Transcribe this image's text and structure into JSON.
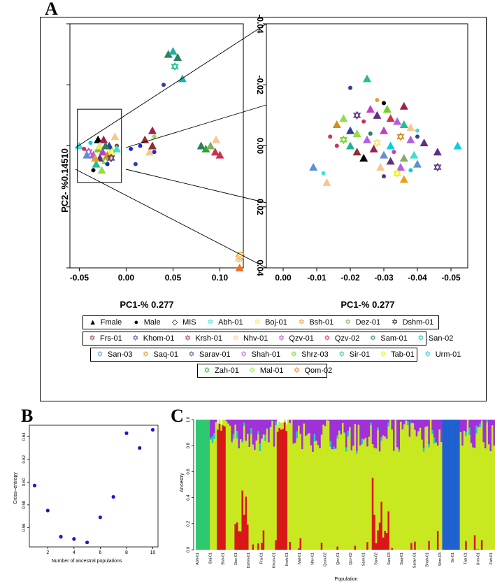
{
  "panel_labels": {
    "a": "A",
    "b": "B",
    "c": "C"
  },
  "colors": {
    "Abh-01": "#40e0d0",
    "Boj-01": "#f5e27a",
    "Bsh-01": "#e6a020",
    "Dez-01": "#7fb060",
    "Dshm-01": "#000000",
    "Frs-01": "#8b3030",
    "Khom-01": "#3040a0",
    "Krsh-01": "#a02050",
    "Nhv-01": "#f5c890",
    "Qzv-01": "#c040c0",
    "Qzv-02": "#d03050",
    "Sam-01": "#2a8060",
    "San-02": "#20b0a0",
    "San-03": "#6090d0",
    "Saq-01": "#d09020",
    "Sarav-01": "#603080",
    "Shah-01": "#b060e0",
    "Shrz-03": "#70d020",
    "Sir-01": "#20c090",
    "Tab-01": "#f0f000",
    "Urm-01": "#00d0e0",
    "Zah-01": "#30a030",
    "Mal-01": "#90e040",
    "Qom-02": "#f07020",
    "Male": "#1a2ad0"
  },
  "legend_rows": [
    [
      {
        "label": "Fmale",
        "sym": "▲",
        "color": "#000000"
      },
      {
        "label": "Male",
        "sym": "●",
        "color": "#000000"
      },
      {
        "label": "MIS",
        "sym": "◇",
        "color": "#000000"
      },
      {
        "label": "Abh-01",
        "sym": "✡",
        "color": "#40e0d0"
      },
      {
        "label": "Boj-01",
        "sym": "✡",
        "color": "#f5e27a"
      },
      {
        "label": "Bsh-01",
        "sym": "✡",
        "color": "#e6a020"
      },
      {
        "label": "Dez-01",
        "sym": "✡",
        "color": "#7fb060"
      },
      {
        "label": "Dshm-01",
        "sym": "✡",
        "color": "#000000"
      }
    ],
    [
      {
        "label": "Frs-01",
        "sym": "✡",
        "color": "#8b3030"
      },
      {
        "label": "Khom-01",
        "sym": "✡",
        "color": "#3040a0"
      },
      {
        "label": "Krsh-01",
        "sym": "✡",
        "color": "#a02050"
      },
      {
        "label": "Nhv-01",
        "sym": "✡",
        "color": "#f5c890"
      },
      {
        "label": "Qzv-01",
        "sym": "✡",
        "color": "#c040c0"
      },
      {
        "label": "Qzv-02",
        "sym": "✡",
        "color": "#d03050"
      },
      {
        "label": "Sam-01",
        "sym": "✡",
        "color": "#2a8060"
      },
      {
        "label": "San-02",
        "sym": "✡",
        "color": "#20b0a0"
      }
    ],
    [
      {
        "label": "San-03",
        "sym": "✡",
        "color": "#6090d0"
      },
      {
        "label": "Saq-01",
        "sym": "✡",
        "color": "#d09020"
      },
      {
        "label": "Sarav-01",
        "sym": "✡",
        "color": "#603080"
      },
      {
        "label": "Shah-01",
        "sym": "✡",
        "color": "#b060e0"
      },
      {
        "label": "Shrz-03",
        "sym": "✡",
        "color": "#70d020"
      },
      {
        "label": "Sir-01",
        "sym": "✡",
        "color": "#20c090"
      },
      {
        "label": "Tab-01",
        "sym": "✡",
        "color": "#f0f000"
      },
      {
        "label": "Urm-01",
        "sym": "✡",
        "color": "#00d0e0"
      }
    ],
    [
      {
        "label": "Zah-01",
        "sym": "✡",
        "color": "#30a030"
      },
      {
        "label": "Mal-01",
        "sym": "✡",
        "color": "#90e040"
      },
      {
        "label": "Qom-02",
        "sym": "✡",
        "color": "#f07020"
      }
    ]
  ],
  "chart_data": [
    {
      "type": "scatter",
      "panel": "A-left",
      "xlabel": "PC1-% 0.277",
      "ylabel": "PC2- %0.14510",
      "xticks": [
        "-0.05",
        "0.00",
        "0.05",
        "0.10"
      ],
      "xlim": [
        -0.06,
        0.125
      ],
      "ylim": [
        -0.04,
        0.04
      ],
      "yticks_unlabeled": [
        -0.04,
        -0.02,
        0.0,
        0.02,
        0.04
      ],
      "points": [
        {
          "x": 0.045,
          "y": -0.03,
          "g": "Sam-01",
          "m": "tri"
        },
        {
          "x": 0.05,
          "y": -0.031,
          "g": "San-02",
          "m": "tri"
        },
        {
          "x": 0.055,
          "y": -0.029,
          "g": "Sam-01",
          "m": "tri"
        },
        {
          "x": 0.052,
          "y": -0.026,
          "g": "Sir-01",
          "m": "star"
        },
        {
          "x": 0.06,
          "y": -0.022,
          "g": "San-02",
          "m": "tri"
        },
        {
          "x": 0.04,
          "y": -0.02,
          "g": "Khom-01",
          "m": "dot"
        },
        {
          "x": 0.028,
          "y": -0.005,
          "g": "Krsh-01",
          "m": "tri"
        },
        {
          "x": 0.03,
          "y": -0.003,
          "g": "Mal-01",
          "m": "dot"
        },
        {
          "x": 0.02,
          "y": -0.002,
          "g": "Frs-01",
          "m": "tri"
        },
        {
          "x": 0.015,
          "y": 0.0,
          "g": "Male",
          "m": "dot"
        },
        {
          "x": 0.005,
          "y": 0.001,
          "g": "Male",
          "m": "dot"
        },
        {
          "x": -0.01,
          "y": 0.0,
          "g": "Frs-01",
          "m": "dot"
        },
        {
          "x": 0.03,
          "y": 0.002,
          "g": "Male",
          "m": "dot"
        },
        {
          "x": 0.01,
          "y": 0.006,
          "g": "Khom-01",
          "m": "dot"
        },
        {
          "x": 0.025,
          "y": 0.002,
          "g": "Nhv-01",
          "m": "tri"
        },
        {
          "x": 0.028,
          "y": 0.0,
          "g": "Frs-01",
          "m": "tri"
        },
        {
          "x": 0.08,
          "y": 0.0,
          "g": "Sam-01",
          "m": "tri"
        },
        {
          "x": 0.085,
          "y": 0.001,
          "g": "Zah-01",
          "m": "tri"
        },
        {
          "x": 0.09,
          "y": 0.0,
          "g": "Dez-01",
          "m": "tri"
        },
        {
          "x": 0.095,
          "y": 0.002,
          "g": "Qzv-02",
          "m": "tri"
        },
        {
          "x": 0.1,
          "y": 0.003,
          "g": "Qzv-02",
          "m": "tri"
        },
        {
          "x": 0.096,
          "y": -0.002,
          "g": "Nhv-01",
          "m": "tri"
        },
        {
          "x": 0.122,
          "y": 0.036,
          "g": "Bsh-01",
          "m": "mis"
        },
        {
          "x": 0.12,
          "y": 0.037,
          "g": "Nhv-01",
          "m": "star"
        },
        {
          "x": 0.121,
          "y": 0.04,
          "g": "Qom-02",
          "m": "tri"
        },
        {
          "x": -0.05,
          "y": 0.0,
          "g": "Abh-01",
          "m": "tri"
        },
        {
          "x": -0.04,
          "y": 0.002,
          "g": "Qzv-01",
          "m": "star"
        },
        {
          "x": -0.035,
          "y": 0.003,
          "g": "Shah-01",
          "m": "tri"
        },
        {
          "x": -0.03,
          "y": 0.001,
          "g": "Shrz-03",
          "m": "tri"
        },
        {
          "x": -0.028,
          "y": 0.004,
          "g": "Sarav-01",
          "m": "tri"
        },
        {
          "x": -0.025,
          "y": 0.002,
          "g": "Qzv-01",
          "m": "tri"
        },
        {
          "x": -0.022,
          "y": 0.005,
          "g": "Shrz-03",
          "m": "star"
        },
        {
          "x": -0.02,
          "y": 0.003,
          "g": "Saq-01",
          "m": "tri"
        },
        {
          "x": -0.018,
          "y": 0.0,
          "g": "Khom-01",
          "m": "tri"
        },
        {
          "x": -0.032,
          "y": 0.006,
          "g": "Sir-01",
          "m": "tri"
        },
        {
          "x": -0.026,
          "y": 0.008,
          "g": "Mal-01",
          "m": "tri"
        },
        {
          "x": -0.015,
          "y": 0.002,
          "g": "Tab-01",
          "m": "star"
        },
        {
          "x": -0.038,
          "y": -0.001,
          "g": "Urm-01",
          "m": "dot"
        },
        {
          "x": -0.042,
          "y": 0.003,
          "g": "San-03",
          "m": "tri"
        },
        {
          "x": -0.03,
          "y": -0.002,
          "g": "Dshm-01",
          "m": "tri"
        },
        {
          "x": -0.024,
          "y": -0.002,
          "g": "Krsh-01",
          "m": "tri"
        },
        {
          "x": -0.02,
          "y": 0.006,
          "g": "Male",
          "m": "dot"
        },
        {
          "x": -0.035,
          "y": 0.008,
          "g": "Dshm-01",
          "m": "dot"
        },
        {
          "x": -0.028,
          "y": 0.0,
          "g": "Boj-01",
          "m": "tri"
        },
        {
          "x": -0.012,
          "y": -0.003,
          "g": "Nhv-01",
          "m": "tri"
        },
        {
          "x": -0.01,
          "y": 0.001,
          "g": "Abh-01",
          "m": "tri"
        },
        {
          "x": -0.045,
          "y": 0.001,
          "g": "Qzv-02",
          "m": "dot"
        },
        {
          "x": -0.033,
          "y": 0.004,
          "g": "Bsh-01",
          "m": "tri"
        },
        {
          "x": -0.022,
          "y": 0.0,
          "g": "Sam-01",
          "m": "tri"
        },
        {
          "x": -0.016,
          "y": 0.004,
          "g": "Sarav-01",
          "m": "star"
        }
      ]
    },
    {
      "type": "scatter",
      "panel": "A-right",
      "xlabel": "PC1-% 0.277",
      "xticks": [
        "0.00",
        "-0.01",
        "-0.02",
        "-0.03",
        "-0.04",
        "-0.05"
      ],
      "yticks": [
        "-0.04",
        "-0.02",
        "0.00",
        "0.02",
        "0.04"
      ],
      "xlim": [
        0.005,
        -0.055
      ],
      "ylim": [
        -0.04,
        0.04
      ],
      "points": [
        {
          "x": -0.025,
          "y": -0.022,
          "g": "Sir-01",
          "m": "tri"
        },
        {
          "x": -0.02,
          "y": -0.019,
          "g": "Khom-01",
          "m": "dot"
        },
        {
          "x": -0.036,
          "y": -0.013,
          "g": "Krsh-01",
          "m": "tri"
        },
        {
          "x": -0.028,
          "y": -0.015,
          "g": "Bsh-01",
          "m": "dot"
        },
        {
          "x": -0.03,
          "y": -0.014,
          "g": "Dshm-01",
          "m": "dot"
        },
        {
          "x": -0.031,
          "y": -0.012,
          "g": "Shrz-03",
          "m": "tri"
        },
        {
          "x": -0.026,
          "y": -0.012,
          "g": "Qzv-01",
          "m": "tri"
        },
        {
          "x": -0.018,
          "y": -0.009,
          "g": "Mal-01",
          "m": "tri"
        },
        {
          "x": -0.022,
          "y": -0.01,
          "g": "Sarav-01",
          "m": "star"
        },
        {
          "x": -0.024,
          "y": -0.008,
          "g": "Qzv-02",
          "m": "dot"
        },
        {
          "x": -0.028,
          "y": -0.01,
          "g": "Sarav-01",
          "m": "tri"
        },
        {
          "x": -0.032,
          "y": -0.009,
          "g": "Qzv-02",
          "m": "tri"
        },
        {
          "x": -0.034,
          "y": -0.008,
          "g": "Shah-01",
          "m": "tri"
        },
        {
          "x": -0.036,
          "y": -0.007,
          "g": "Sir-01",
          "m": "tri"
        },
        {
          "x": -0.038,
          "y": -0.006,
          "g": "Nhv-01",
          "m": "tri"
        },
        {
          "x": -0.04,
          "y": -0.005,
          "g": "Abh-01",
          "m": "dot"
        },
        {
          "x": -0.016,
          "y": -0.007,
          "g": "Saq-01",
          "m": "tri"
        },
        {
          "x": -0.02,
          "y": -0.005,
          "g": "Khom-01",
          "m": "tri"
        },
        {
          "x": -0.022,
          "y": -0.004,
          "g": "Mal-01",
          "m": "tri"
        },
        {
          "x": -0.026,
          "y": -0.004,
          "g": "Sam-01",
          "m": "dot"
        },
        {
          "x": -0.03,
          "y": -0.005,
          "g": "Qzv-01",
          "m": "tri"
        },
        {
          "x": -0.035,
          "y": -0.003,
          "g": "Saq-01",
          "m": "star"
        },
        {
          "x": -0.038,
          "y": -0.002,
          "g": "Shah-01",
          "m": "tri"
        },
        {
          "x": -0.042,
          "y": -0.001,
          "g": "Sarav-01",
          "m": "tri"
        },
        {
          "x": -0.014,
          "y": -0.003,
          "g": "Qzv-02",
          "m": "dot"
        },
        {
          "x": -0.018,
          "y": -0.002,
          "g": "Shrz-03",
          "m": "star"
        },
        {
          "x": -0.025,
          "y": -0.002,
          "g": "Shah-01",
          "m": "tri"
        },
        {
          "x": -0.028,
          "y": -0.001,
          "g": "Boj-01",
          "m": "star"
        },
        {
          "x": -0.032,
          "y": 0.0,
          "g": "Urm-01",
          "m": "tri"
        },
        {
          "x": -0.04,
          "y": -0.003,
          "g": "Khom-01",
          "m": "dot"
        },
        {
          "x": -0.022,
          "y": 0.002,
          "g": "Frs-01",
          "m": "tri"
        },
        {
          "x": -0.024,
          "y": 0.004,
          "g": "Dshm-01",
          "m": "tri"
        },
        {
          "x": -0.027,
          "y": 0.001,
          "g": "Krsh-01",
          "m": "tri"
        },
        {
          "x": -0.03,
          "y": 0.003,
          "g": "San-03",
          "m": "tri"
        },
        {
          "x": -0.033,
          "y": 0.002,
          "g": "Qzv-01",
          "m": "dot"
        },
        {
          "x": -0.036,
          "y": 0.004,
          "g": "Dez-01",
          "m": "tri"
        },
        {
          "x": -0.039,
          "y": 0.003,
          "g": "Abh-01",
          "m": "tri"
        },
        {
          "x": -0.046,
          "y": 0.002,
          "g": "Sarav-01",
          "m": "tri"
        },
        {
          "x": -0.052,
          "y": 0.0,
          "g": "Urm-01",
          "m": "tri"
        },
        {
          "x": -0.016,
          "y": 0.0,
          "g": "Qzv-02",
          "m": "dot"
        },
        {
          "x": -0.02,
          "y": 0.0,
          "g": "San-02",
          "m": "tri"
        },
        {
          "x": -0.029,
          "y": 0.007,
          "g": "Nhv-01",
          "m": "tri"
        },
        {
          "x": -0.032,
          "y": 0.005,
          "g": "Sarav-01",
          "m": "tri"
        },
        {
          "x": -0.035,
          "y": 0.007,
          "g": "Shah-01",
          "m": "tri"
        },
        {
          "x": -0.04,
          "y": 0.006,
          "g": "San-03",
          "m": "tri"
        },
        {
          "x": -0.046,
          "y": 0.007,
          "g": "Sarav-01",
          "m": "star"
        },
        {
          "x": -0.038,
          "y": 0.008,
          "g": "Urm-01",
          "m": "dot"
        },
        {
          "x": -0.036,
          "y": 0.011,
          "g": "Bsh-01",
          "m": "tri"
        },
        {
          "x": -0.03,
          "y": 0.01,
          "g": "Sarav-01",
          "m": "dot"
        },
        {
          "x": -0.034,
          "y": 0.009,
          "g": "Tab-01",
          "m": "star"
        },
        {
          "x": -0.009,
          "y": 0.007,
          "g": "San-03",
          "m": "tri"
        },
        {
          "x": -0.012,
          "y": 0.009,
          "g": "Abh-01",
          "m": "dot"
        },
        {
          "x": -0.013,
          "y": 0.012,
          "g": "Nhv-01",
          "m": "tri"
        }
      ]
    },
    {
      "type": "scatter",
      "panel": "B",
      "xlabel": "Number of ancestral populations",
      "ylabel": "Cross–entropy",
      "xticks": [
        "2",
        "4",
        "6",
        "8",
        "10"
      ],
      "yticks": [
        "0.56",
        "0.58",
        "0.60",
        "0.62",
        "0.64"
      ],
      "xlim": [
        0.6,
        10.4
      ],
      "ylim": [
        0.543,
        0.65
      ],
      "x": [
        1,
        2,
        3,
        4,
        5,
        6,
        7,
        8,
        9,
        10
      ],
      "y": [
        0.597,
        0.575,
        0.552,
        0.55,
        0.547,
        0.569,
        0.587,
        0.643,
        0.63,
        0.646
      ]
    },
    {
      "type": "bar",
      "panel": "C",
      "stacked": true,
      "xlabel": "Population",
      "ylabel": "Ancestry",
      "yticks": [
        "0.0",
        "0.2",
        "0.4",
        "0.6",
        "0.8",
        "1.0"
      ],
      "ylim": [
        0,
        1
      ],
      "categories": [
        "Abh-01",
        "Boj-01",
        "Bsh-01",
        "Dez-01",
        "Dshm-01",
        "Fra-01",
        "Khom-01",
        "Krsh-01",
        "Mal-01",
        "Nhv-01",
        "Qom-02",
        "Qzv-01",
        "Qzv-02",
        "Sam-01",
        "San-02",
        "San-03",
        "Saq-01",
        "Sarav-01",
        "Shah-01",
        "Shrz-03",
        "Sir-01",
        "Tab-01",
        "Urm-01",
        "Zah-01"
      ]
    }
  ]
}
